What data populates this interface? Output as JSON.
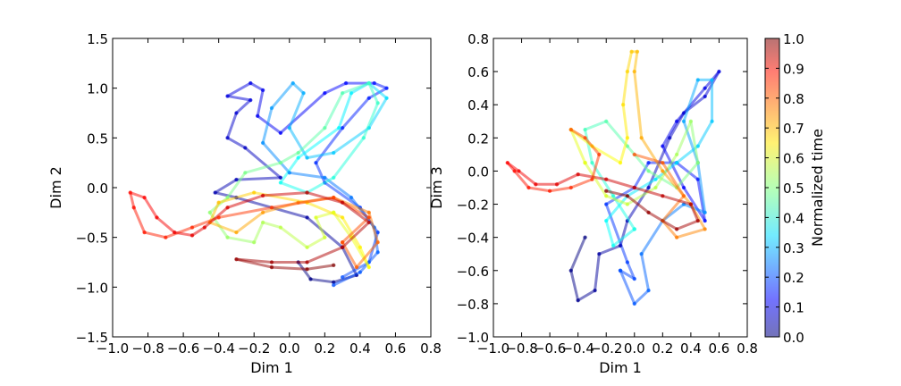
{
  "chart_data": [
    {
      "type": "line",
      "xlabel": "Dim 1",
      "ylabel": "Dim 2",
      "xlim": [
        -1.0,
        0.8
      ],
      "ylim": [
        -1.5,
        1.5
      ],
      "xticks": [
        "−1.0",
        "−0.8",
        "−0.6",
        "−0.4",
        "−0.2",
        "0.0",
        "0.2",
        "0.4",
        "0.6",
        "0.8"
      ],
      "yticks": [
        "−1.5",
        "−1.0",
        "−0.5",
        "0.0",
        "0.5",
        "1.0",
        "1.5"
      ],
      "grid": false,
      "series": [
        {
          "color_by": "Normalized time",
          "t_range": [
            0.0,
            0.2
          ],
          "points": [
            [
              0.05,
              -0.75
            ],
            [
              0.12,
              -0.92
            ],
            [
              0.25,
              -0.95
            ],
            [
              0.38,
              -0.88
            ],
            [
              0.3,
              -0.6
            ],
            [
              0.1,
              -0.3
            ],
            [
              -0.3,
              -0.1
            ],
            [
              -0.42,
              -0.05
            ],
            [
              -0.3,
              0.08
            ],
            [
              -0.05,
              0.1
            ],
            [
              -0.25,
              0.4
            ],
            [
              -0.35,
              0.5
            ],
            [
              -0.3,
              0.75
            ],
            [
              -0.22,
              0.88
            ],
            [
              -0.35,
              0.92
            ],
            [
              -0.22,
              1.05
            ],
            [
              -0.15,
              0.98
            ],
            [
              -0.18,
              0.72
            ],
            [
              -0.05,
              0.55
            ],
            [
              0.2,
              0.95
            ],
            [
              0.32,
              1.05
            ],
            [
              0.48,
              1.05
            ],
            [
              0.55,
              1.0
            ],
            [
              0.45,
              0.9
            ],
            [
              0.3,
              0.6
            ],
            [
              0.15,
              0.25
            ],
            [
              0.2,
              0.05
            ],
            [
              0.4,
              -0.2
            ],
            [
              0.5,
              -0.45
            ],
            [
              0.45,
              -0.75
            ],
            [
              0.3,
              -0.9
            ]
          ]
        },
        {
          "color_by": "Normalized time",
          "t_range": [
            0.2,
            0.4
          ],
          "points": [
            [
              0.25,
              -0.98
            ],
            [
              0.4,
              -0.85
            ],
            [
              0.5,
              -0.65
            ],
            [
              0.48,
              -0.4
            ],
            [
              0.35,
              -0.1
            ],
            [
              0.2,
              0.1
            ],
            [
              0.0,
              0.15
            ],
            [
              -0.15,
              0.45
            ],
            [
              -0.1,
              0.8
            ],
            [
              0.02,
              1.05
            ],
            [
              0.08,
              0.95
            ],
            [
              0.0,
              0.6
            ],
            [
              0.1,
              0.3
            ],
            [
              0.25,
              0.35
            ],
            [
              0.45,
              0.6
            ],
            [
              0.55,
              0.9
            ],
            [
              0.45,
              1.05
            ],
            [
              0.35,
              0.95
            ],
            [
              0.28,
              0.6
            ],
            [
              0.05,
              0.3
            ],
            [
              -0.05,
              0.05
            ],
            [
              0.1,
              -0.05
            ]
          ]
        },
        {
          "color_by": "Normalized time",
          "t_range": [
            0.4,
            0.6
          ],
          "points": [
            [
              0.1,
              -0.05
            ],
            [
              0.25,
              0.1
            ],
            [
              0.42,
              0.5
            ],
            [
              0.5,
              0.85
            ],
            [
              0.45,
              1.05
            ],
            [
              0.3,
              0.95
            ],
            [
              0.2,
              0.6
            ],
            [
              0.05,
              0.35
            ],
            [
              -0.05,
              0.25
            ],
            [
              -0.25,
              0.15
            ],
            [
              -0.35,
              -0.1
            ],
            [
              -0.45,
              -0.25
            ],
            [
              -0.35,
              -0.5
            ],
            [
              -0.2,
              -0.55
            ],
            [
              -0.15,
              -0.35
            ],
            [
              -0.05,
              -0.4
            ],
            [
              0.1,
              -0.6
            ],
            [
              0.2,
              -0.5
            ],
            [
              0.15,
              -0.3
            ],
            [
              0.25,
              -0.25
            ]
          ]
        },
        {
          "color_by": "Normalized time",
          "t_range": [
            0.6,
            0.8
          ],
          "points": [
            [
              0.25,
              -0.25
            ],
            [
              0.35,
              -0.5
            ],
            [
              0.45,
              -0.8
            ],
            [
              0.4,
              -0.6
            ],
            [
              0.3,
              -0.3
            ],
            [
              0.1,
              -0.15
            ],
            [
              -0.2,
              -0.05
            ],
            [
              -0.4,
              -0.15
            ],
            [
              -0.45,
              -0.35
            ],
            [
              -0.3,
              -0.45
            ],
            [
              -0.15,
              -0.25
            ],
            [
              0.05,
              -0.15
            ],
            [
              0.25,
              -0.1
            ],
            [
              0.45,
              -0.25
            ],
            [
              0.5,
              -0.55
            ],
            [
              0.38,
              -0.8
            ],
            [
              0.3,
              -0.55
            ]
          ]
        },
        {
          "color_by": "Normalized time",
          "t_range": [
            0.8,
            1.0
          ],
          "points": [
            [
              0.3,
              -0.55
            ],
            [
              0.45,
              -0.3
            ],
            [
              0.25,
              -0.1
            ],
            [
              -0.1,
              -0.2
            ],
            [
              -0.4,
              -0.3
            ],
            [
              -0.55,
              -0.4
            ],
            [
              -0.7,
              -0.5
            ],
            [
              -0.82,
              -0.45
            ],
            [
              -0.88,
              -0.2
            ],
            [
              -0.9,
              -0.05
            ],
            [
              -0.82,
              -0.1
            ],
            [
              -0.75,
              -0.3
            ],
            [
              -0.65,
              -0.45
            ],
            [
              -0.55,
              -0.48
            ],
            [
              -0.48,
              -0.4
            ],
            [
              -0.35,
              -0.2
            ],
            [
              -0.15,
              -0.08
            ],
            [
              0.1,
              -0.05
            ],
            [
              0.3,
              -0.15
            ],
            [
              0.45,
              -0.35
            ],
            [
              0.3,
              -0.6
            ],
            [
              0.1,
              -0.75
            ],
            [
              -0.1,
              -0.75
            ],
            [
              -0.3,
              -0.72
            ],
            [
              -0.1,
              -0.8
            ],
            [
              0.1,
              -0.82
            ],
            [
              0.25,
              -0.78
            ]
          ]
        }
      ]
    },
    {
      "type": "line",
      "xlabel": "Dim 1",
      "ylabel": "Dim 3",
      "xlim": [
        -1.0,
        0.8
      ],
      "ylim": [
        -1.0,
        0.8
      ],
      "xticks": [
        "−1.0",
        "−0.8",
        "−0.6",
        "−0.4",
        "−0.2",
        "0.0",
        "0.2",
        "0.4",
        "0.6",
        "0.8"
      ],
      "yticks": [
        "−1.0",
        "−0.8",
        "−0.6",
        "−0.4",
        "−0.2",
        "0.0",
        "0.2",
        "0.4",
        "0.6",
        "0.8"
      ],
      "grid": false,
      "series": [
        {
          "color_by": "Normalized time",
          "t_range": [
            0.0,
            0.2
          ],
          "points": [
            [
              -0.35,
              -0.4
            ],
            [
              -0.45,
              -0.6
            ],
            [
              -0.4,
              -0.78
            ],
            [
              -0.28,
              -0.72
            ],
            [
              -0.25,
              -0.5
            ],
            [
              -0.1,
              -0.45
            ],
            [
              -0.05,
              -0.3
            ],
            [
              0.1,
              -0.1
            ],
            [
              0.25,
              0.2
            ],
            [
              0.35,
              0.35
            ],
            [
              0.5,
              0.45
            ],
            [
              0.6,
              0.6
            ],
            [
              0.5,
              0.5
            ],
            [
              0.3,
              0.3
            ],
            [
              0.2,
              0.15
            ],
            [
              0.35,
              -0.1
            ],
            [
              0.5,
              -0.3
            ],
            [
              0.45,
              -0.05
            ],
            [
              0.3,
              0.05
            ],
            [
              0.1,
              0.05
            ],
            [
              0.0,
              -0.1
            ],
            [
              -0.2,
              -0.2
            ],
            [
              -0.05,
              -0.55
            ],
            [
              0.0,
              -0.65
            ],
            [
              -0.1,
              -0.6
            ]
          ]
        },
        {
          "color_by": "Normalized time",
          "t_range": [
            0.2,
            0.4
          ],
          "points": [
            [
              -0.1,
              -0.6
            ],
            [
              0.0,
              -0.8
            ],
            [
              0.1,
              -0.72
            ],
            [
              0.05,
              -0.5
            ],
            [
              0.2,
              -0.3
            ],
            [
              0.35,
              -0.2
            ],
            [
              0.5,
              -0.25
            ],
            [
              0.45,
              0.05
            ],
            [
              0.35,
              0.3
            ],
            [
              0.45,
              0.55
            ],
            [
              0.55,
              0.55
            ],
            [
              0.55,
              0.3
            ],
            [
              0.45,
              0.15
            ],
            [
              0.3,
              0.05
            ],
            [
              0.15,
              -0.05
            ],
            [
              -0.05,
              -0.15
            ],
            [
              -0.2,
              -0.3
            ],
            [
              -0.15,
              -0.45
            ],
            [
              0.0,
              -0.35
            ]
          ]
        },
        {
          "color_by": "Normalized time",
          "t_range": [
            0.4,
            0.6
          ],
          "points": [
            [
              0.0,
              -0.35
            ],
            [
              -0.15,
              -0.15
            ],
            [
              -0.3,
              0.05
            ],
            [
              -0.35,
              0.25
            ],
            [
              -0.2,
              0.3
            ],
            [
              -0.05,
              0.15
            ],
            [
              0.1,
              0.0
            ],
            [
              0.3,
              -0.1
            ],
            [
              0.45,
              0.05
            ],
            [
              0.4,
              0.3
            ],
            [
              0.3,
              0.1
            ],
            [
              0.15,
              -0.1
            ],
            [
              -0.05,
              -0.2
            ],
            [
              -0.2,
              -0.15
            ],
            [
              -0.35,
              0.05
            ]
          ]
        },
        {
          "color_by": "Normalized time",
          "t_range": [
            0.6,
            0.8
          ],
          "points": [
            [
              -0.35,
              0.05
            ],
            [
              -0.45,
              0.25
            ],
            [
              -0.3,
              0.15
            ],
            [
              -0.1,
              0.05
            ],
            [
              -0.05,
              0.2
            ],
            [
              -0.08,
              0.4
            ],
            [
              -0.05,
              0.6
            ],
            [
              -0.02,
              0.72
            ],
            [
              0.02,
              0.72
            ],
            [
              0.0,
              0.6
            ],
            [
              0.05,
              0.2
            ],
            [
              0.2,
              0.0
            ],
            [
              0.4,
              -0.2
            ],
            [
              0.5,
              -0.35
            ],
            [
              0.3,
              -0.4
            ],
            [
              0.2,
              -0.3
            ],
            [
              0.35,
              -0.15
            ],
            [
              0.2,
              0.05
            ],
            [
              0.0,
              0.1
            ]
          ]
        },
        {
          "color_by": "Normalized time",
          "t_range": [
            0.8,
            1.0
          ],
          "points": [
            [
              -0.45,
              0.25
            ],
            [
              -0.35,
              0.2
            ],
            [
              -0.25,
              0.1
            ],
            [
              -0.3,
              -0.05
            ],
            [
              -0.45,
              -0.1
            ],
            [
              -0.6,
              -0.12
            ],
            [
              -0.75,
              -0.1
            ],
            [
              -0.85,
              0.0
            ],
            [
              -0.9,
              0.05
            ],
            [
              -0.82,
              0.0
            ],
            [
              -0.7,
              -0.08
            ],
            [
              -0.55,
              -0.08
            ],
            [
              -0.4,
              -0.02
            ],
            [
              -0.2,
              -0.05
            ],
            [
              0.0,
              -0.1
            ],
            [
              0.2,
              -0.15
            ],
            [
              0.4,
              -0.2
            ],
            [
              0.45,
              -0.3
            ],
            [
              0.3,
              -0.35
            ],
            [
              0.1,
              -0.25
            ],
            [
              -0.05,
              -0.15
            ],
            [
              -0.2,
              -0.12
            ]
          ]
        }
      ]
    }
  ],
  "colorbar": {
    "label": "Normalized time",
    "ticks": [
      "0.0",
      "0.1",
      "0.2",
      "0.3",
      "0.4",
      "0.5",
      "0.6",
      "0.7",
      "0.8",
      "0.9",
      "1.0"
    ],
    "range": [
      0.0,
      1.0
    ],
    "colormap": "jet",
    "alpha": 0.5
  }
}
